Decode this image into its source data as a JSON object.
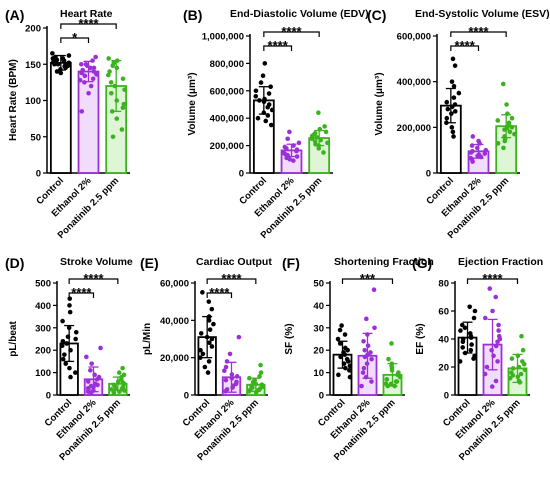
{
  "figure": {
    "width": 550,
    "height": 498
  },
  "chart_data": [
    {
      "letter": "(A)",
      "type": "bar",
      "title": "Heart Rate",
      "ylabel": "Heart Rate (BPM)",
      "ylim": [
        0,
        200
      ],
      "yticks": [
        0,
        50,
        100,
        150,
        200
      ],
      "tick_labels": [
        "0",
        "50",
        "100",
        "150",
        "200"
      ],
      "categories": [
        "Control",
        "Ethanol 2%",
        "Ponatinib 2.5 ppm"
      ],
      "values": [
        152,
        140,
        120
      ],
      "errors": [
        10,
        14,
        35
      ],
      "points": [
        [
          165,
          160,
          158,
          156,
          155,
          153,
          152,
          150,
          150,
          148,
          147,
          145,
          143,
          140,
          138,
          158,
          162,
          155,
          150
        ],
        [
          160,
          155,
          150,
          148,
          145,
          142,
          140,
          138,
          136,
          134,
          130,
          128,
          125,
          120,
          110,
          85,
          150,
          145
        ],
        [
          158,
          155,
          152,
          148,
          145,
          140,
          135,
          130,
          125,
          120,
          115,
          110,
          100,
          95,
          90,
          85,
          75,
          60,
          50
        ]
      ],
      "comparisons": [
        {
          "from": 0,
          "to": 1,
          "stars": "*"
        },
        {
          "from": 0,
          "to": 2,
          "stars": "****"
        }
      ]
    },
    {
      "letter": "(B)",
      "type": "bar",
      "title": "End-Diastolic Volume (EDV)",
      "ylabel": "Volume (μm³)",
      "ylim": [
        0,
        1000000
      ],
      "yticks": [
        0,
        200000,
        400000,
        600000,
        800000,
        1000000
      ],
      "tick_labels": [
        "0",
        "200,000",
        "400,000",
        "600,000",
        "800,000",
        "1,000,000"
      ],
      "categories": [
        "Control",
        "Ethanol 2%",
        "Ponatinib 2.5 ppm"
      ],
      "values": [
        530000,
        165000,
        255000
      ],
      "errors": [
        100000,
        45000,
        55000
      ],
      "points": [
        [
          800000,
          710000,
          660000,
          630000,
          600000,
          580000,
          560000,
          540000,
          530000,
          520000,
          500000,
          480000,
          460000,
          440000,
          420000,
          400000,
          380000,
          350000
        ],
        [
          300000,
          250000,
          220000,
          200000,
          190000,
          180000,
          170000,
          160000,
          150000,
          140000,
          130000,
          120000,
          110000,
          100000,
          90000
        ],
        [
          440000,
          340000,
          320000,
          300000,
          290000,
          280000,
          270000,
          260000,
          250000,
          240000,
          230000,
          220000,
          210000,
          200000,
          180000,
          150000
        ]
      ],
      "comparisons": [
        {
          "from": 0,
          "to": 1,
          "stars": "****"
        },
        {
          "from": 0,
          "to": 2,
          "stars": "****"
        }
      ]
    },
    {
      "letter": "(C)",
      "type": "bar",
      "title": "End-Systolic Volume (ESV)",
      "ylabel": "Volume (μm³)",
      "ylim": [
        0,
        600000
      ],
      "yticks": [
        0,
        200000,
        400000,
        600000
      ],
      "tick_labels": [
        "0",
        "200,000",
        "400,000",
        "600,000"
      ],
      "categories": [
        "Control",
        "Ethanol 2%",
        "Ponatinib 2.5 ppm"
      ],
      "values": [
        295000,
        95000,
        205000
      ],
      "errors": [
        75000,
        30000,
        50000
      ],
      "points": [
        [
          500000,
          470000,
          400000,
          380000,
          350000,
          330000,
          310000,
          300000,
          290000,
          280000,
          270000,
          260000,
          240000,
          220000,
          200000,
          180000,
          160000
        ],
        [
          160000,
          140000,
          130000,
          120000,
          110000,
          100000,
          95000,
          90000,
          85000,
          80000,
          75000,
          70000,
          65000,
          60000,
          50000
        ],
        [
          390000,
          300000,
          260000,
          240000,
          230000,
          220000,
          210000,
          200000,
          195000,
          190000,
          180000,
          170000,
          160000,
          150000,
          140000,
          130000,
          110000
        ]
      ],
      "comparisons": [
        {
          "from": 0,
          "to": 1,
          "stars": "****"
        },
        {
          "from": 0,
          "to": 2,
          "stars": "****"
        }
      ]
    },
    {
      "letter": "(D)",
      "type": "bar",
      "title": "Stroke Volume",
      "ylabel": "pL/beat",
      "ylim": [
        0,
        500
      ],
      "yticks": [
        0,
        100,
        200,
        300,
        400,
        500
      ],
      "tick_labels": [
        "0",
        "100",
        "200",
        "300",
        "400",
        "500"
      ],
      "categories": [
        "Control",
        "Ethanol 2%",
        "Ponatinib 2.5 ppm"
      ],
      "values": [
        230,
        70,
        50
      ],
      "errors": [
        80,
        55,
        30
      ],
      "points": [
        [
          430,
          400,
          370,
          330,
          300,
          280,
          260,
          250,
          240,
          230,
          220,
          200,
          180,
          160,
          140,
          120,
          100,
          80
        ],
        [
          210,
          170,
          140,
          110,
          90,
          80,
          70,
          60,
          50,
          45,
          40,
          35,
          30,
          25,
          20,
          15,
          10
        ],
        [
          120,
          100,
          90,
          80,
          70,
          60,
          55,
          50,
          45,
          40,
          35,
          30,
          28,
          25,
          20,
          15,
          10
        ]
      ],
      "comparisons": [
        {
          "from": 0,
          "to": 1,
          "stars": "****"
        },
        {
          "from": 0,
          "to": 2,
          "stars": "****"
        }
      ]
    },
    {
      "letter": "(E)",
      "type": "bar",
      "title": "Cardiac Output",
      "ylabel": "pL/Min",
      "ylim": [
        0,
        60000
      ],
      "yticks": [
        0,
        20000,
        40000,
        60000
      ],
      "tick_labels": [
        "0",
        "20,000",
        "40,000",
        "60,000"
      ],
      "categories": [
        "Control",
        "Ethanol 2%",
        "Ponatinib 2.5 ppm"
      ],
      "values": [
        31000,
        9500,
        5500
      ],
      "errors": [
        11000,
        8000,
        3500
      ],
      "points": [
        [
          55000,
          50000,
          46000,
          42000,
          40000,
          38000,
          35000,
          33000,
          31000,
          30000,
          28000,
          26000,
          24000,
          22000,
          20000,
          18000,
          15000,
          12000
        ],
        [
          31000,
          22000,
          18000,
          15000,
          13000,
          11000,
          10000,
          9000,
          8000,
          7000,
          6000,
          5000,
          4000,
          3000,
          2000
        ],
        [
          16000,
          12000,
          10000,
          9000,
          8000,
          7000,
          6000,
          5500,
          5000,
          4500,
          4000,
          3500,
          3000,
          2500,
          2000,
          1500
        ]
      ],
      "comparisons": [
        {
          "from": 0,
          "to": 1,
          "stars": "****"
        },
        {
          "from": 0,
          "to": 2,
          "stars": "****"
        }
      ]
    },
    {
      "letter": "(F)",
      "type": "bar",
      "title": "Shortening Fraction",
      "ylabel": "SF (%)",
      "ylim": [
        0,
        50
      ],
      "yticks": [
        0,
        10,
        20,
        30,
        40,
        50
      ],
      "tick_labels": [
        "0",
        "10",
        "20",
        "30",
        "40",
        "50"
      ],
      "categories": [
        "Control",
        "Ethanol 2%",
        "Ponatinib 2.5 ppm"
      ],
      "values": [
        18,
        17.5,
        9
      ],
      "errors": [
        6,
        10,
        5
      ],
      "points": [
        [
          31,
          29,
          27,
          25,
          23,
          21,
          20,
          19,
          18,
          17,
          16,
          15,
          14,
          13,
          12,
          11,
          9,
          8
        ],
        [
          47,
          34,
          30,
          27,
          24,
          22,
          20,
          19,
          18,
          17,
          16,
          14,
          12,
          10,
          8,
          6,
          4
        ],
        [
          23,
          16,
          14,
          13,
          12,
          11,
          10,
          9,
          8,
          7,
          6,
          6,
          5,
          5,
          4,
          4
        ]
      ],
      "comparisons": [
        {
          "from": 0,
          "to": 2,
          "stars": "***"
        }
      ]
    },
    {
      "letter": "(G)",
      "type": "bar",
      "title": "Ejection Fraction",
      "ylabel": "EF (%)",
      "ylim": [
        0,
        80
      ],
      "yticks": [
        0,
        20,
        40,
        60,
        80
      ],
      "tick_labels": [
        "0",
        "20",
        "40",
        "60",
        "80"
      ],
      "categories": [
        "Control",
        "Ethanol 2%",
        "Ponatinib 2.5 ppm"
      ],
      "values": [
        41,
        36,
        19
      ],
      "errors": [
        11,
        18,
        10
      ],
      "points": [
        [
          63,
          60,
          55,
          50,
          48,
          46,
          44,
          42,
          41,
          40,
          38,
          36,
          34,
          32,
          30,
          28,
          26,
          24
        ],
        [
          76,
          70,
          60,
          55,
          50,
          46,
          42,
          40,
          38,
          35,
          32,
          28,
          24,
          20,
          15,
          10,
          6
        ],
        [
          42,
          32,
          28,
          26,
          24,
          22,
          20,
          19,
          18,
          16,
          15,
          14,
          13,
          12,
          10,
          9
        ]
      ],
      "comparisons": [
        {
          "from": 0,
          "to": 2,
          "stars": "****"
        }
      ]
    }
  ],
  "colors": {
    "groups": [
      "#000000",
      "#9b30d9",
      "#3cb31e"
    ],
    "fills": [
      "#ffffff",
      "#f2dcfb",
      "#def5d6"
    ],
    "axis": "#000000"
  }
}
